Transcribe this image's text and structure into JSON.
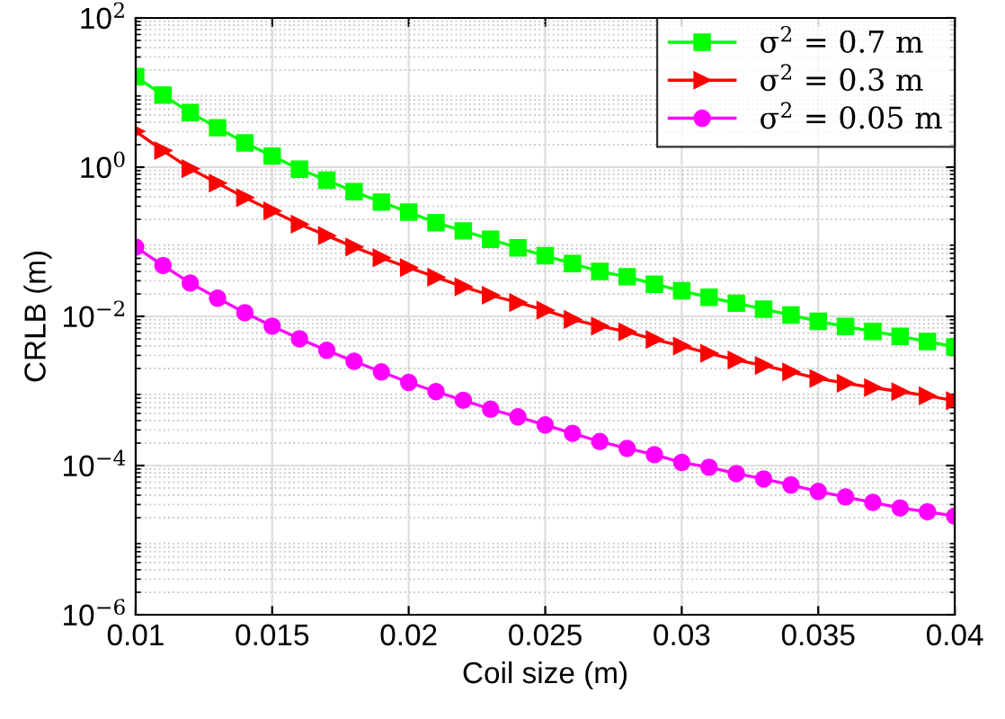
{
  "chart_data": {
    "type": "line",
    "xlabel": "Coil size (m)",
    "ylabel": "CRLB (m)",
    "log": "y",
    "grid": true,
    "legend": "top right",
    "x": [
      0.01,
      0.011,
      0.012,
      0.013,
      0.014,
      0.015,
      0.016,
      0.017,
      0.018,
      0.019,
      0.02,
      0.021,
      0.022,
      0.023,
      0.024,
      0.025,
      0.026,
      0.027,
      0.028,
      0.029,
      0.03,
      0.031,
      0.032,
      0.033,
      0.034,
      0.035,
      0.036,
      0.037,
      0.038,
      0.039,
      0.04
    ],
    "xlim": [
      0.01,
      0.04
    ],
    "xticks": [
      0.01,
      0.015,
      0.02,
      0.025,
      0.03,
      0.035,
      0.04
    ],
    "ylim": [
      1e-06,
      100
    ],
    "yticks": [
      {
        "value": 1e-06,
        "label": "10$^{−6}$"
      },
      {
        "value": 0.0001,
        "label": "10$^{−4}$"
      },
      {
        "value": 0.01,
        "label": "10$^{−2}$"
      },
      {
        "value": 1,
        "label": "10$^{0}$"
      },
      {
        "value": 100,
        "label": "10$^{2}$"
      }
    ],
    "series": [
      {
        "name": "σ$^{2}$ = 0.7 m",
        "color": "#00ff00",
        "marker": "square",
        "values": [
          16.4,
          9.25,
          5.38,
          3.38,
          2.12,
          1.41,
          0.94,
          0.67,
          0.47,
          0.34,
          0.25,
          0.18,
          0.14,
          0.108,
          0.083,
          0.065,
          0.051,
          0.04,
          0.034,
          0.027,
          0.022,
          0.018,
          0.015,
          0.0125,
          0.0104,
          0.0086,
          0.0073,
          0.0063,
          0.0054,
          0.0046,
          0.0039
        ]
      },
      {
        "name": "σ$^{2}$ = 0.3 m",
        "color": "#ff0000",
        "marker": "triangle",
        "values": [
          3.03,
          1.67,
          0.955,
          0.611,
          0.391,
          0.259,
          0.172,
          0.121,
          0.085,
          0.061,
          0.045,
          0.0335,
          0.0249,
          0.0192,
          0.0153,
          0.0121,
          0.0091,
          0.0074,
          0.0062,
          0.0049,
          0.004,
          0.0032,
          0.0026,
          0.0022,
          0.0018,
          0.00147,
          0.00127,
          0.00111,
          0.00098,
          0.00086,
          0.00074
        ]
      },
      {
        "name": "σ$^{2}$ = 0.05 m",
        "color": "#ff00ff",
        "marker": "circle",
        "values": [
          0.085,
          0.048,
          0.028,
          0.0175,
          0.0112,
          0.0074,
          0.005,
          0.0035,
          0.0025,
          0.0018,
          0.0013,
          0.00098,
          0.00075,
          0.00057,
          0.00045,
          0.00035,
          0.00027,
          0.00021,
          0.00017,
          0.00014,
          0.00011,
          9.5e-05,
          7.8e-05,
          6.6e-05,
          5.5e-05,
          4.5e-05,
          3.8e-05,
          3.2e-05,
          2.7e-05,
          2.4e-05,
          2.1e-05
        ]
      }
    ]
  }
}
